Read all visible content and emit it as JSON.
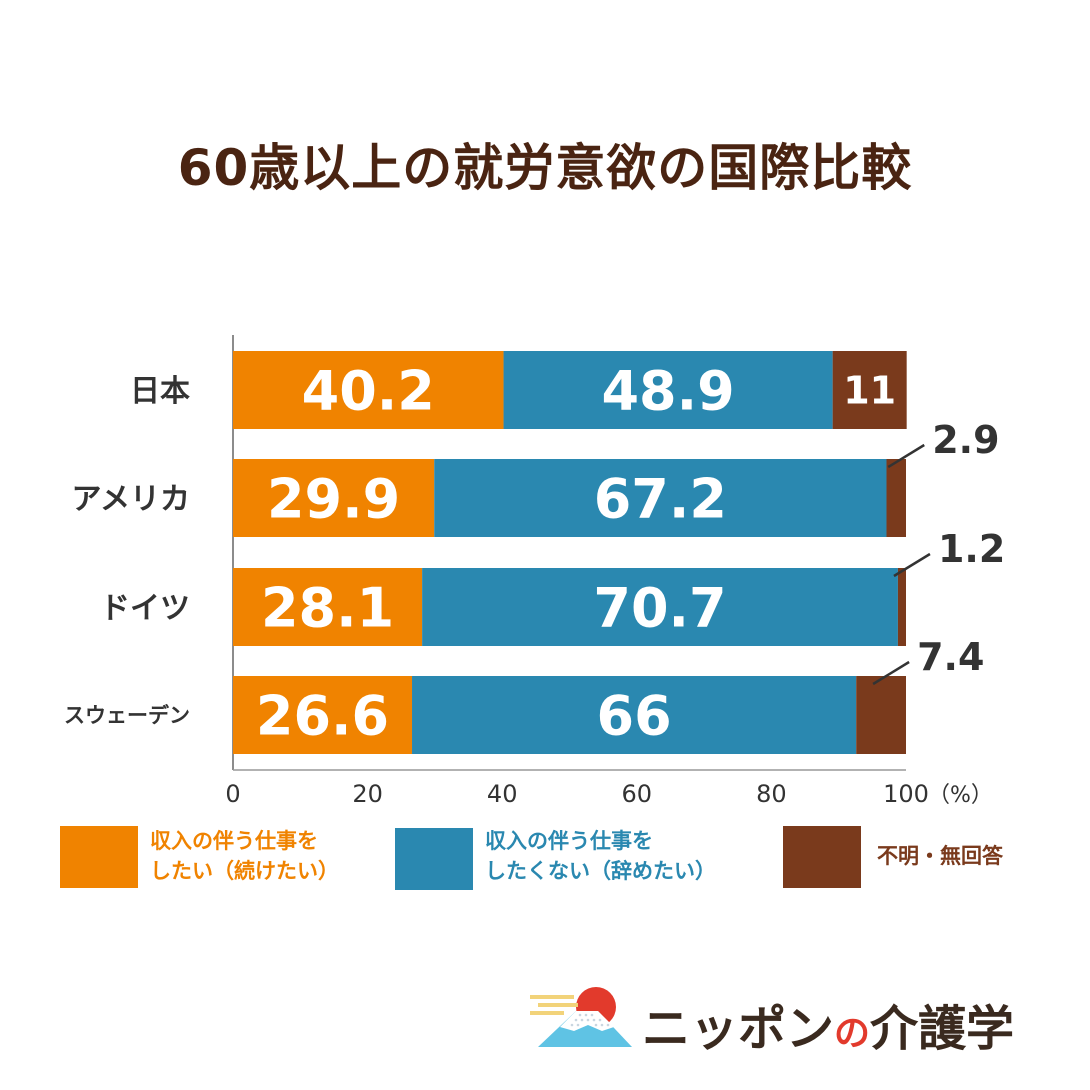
{
  "colors": {
    "title": "#4a2412",
    "continue": "#f08300",
    "quit": "#2a88b0",
    "unknown": "#7a3a1c",
    "text_dark": "#333333",
    "brand_red": "#e23a2c"
  },
  "chart_data": {
    "type": "bar",
    "orientation": "horizontal-stacked",
    "title": "60歳以上の就労意欲の国際比較",
    "categories": [
      "日本",
      "アメリカ",
      "ドイツ",
      "スウェーデン"
    ],
    "series": [
      {
        "key": "continue",
        "name": "収入の伴う仕事をしたい（続けたい）",
        "values": [
          40.2,
          29.9,
          28.1,
          26.6
        ],
        "labels": [
          "40.2",
          "29.9",
          "28.1",
          "26.6"
        ]
      },
      {
        "key": "quit",
        "name": "収入の伴う仕事をしたくない（辞めたい）",
        "values": [
          48.9,
          67.2,
          70.7,
          66
        ],
        "labels": [
          "48.9",
          "67.2",
          "70.7",
          "66"
        ]
      },
      {
        "key": "unknown",
        "name": "不明・無回答",
        "values": [
          11,
          2.9,
          1.2,
          7.4
        ],
        "labels": [
          "11",
          "2.9",
          "1.2",
          "7.4"
        ]
      }
    ],
    "xlim": [
      0,
      100
    ],
    "xticks": [
      "0",
      "20",
      "40",
      "60",
      "80",
      "100"
    ],
    "xunit": "（%）",
    "grid": false,
    "legend_position": "bottom"
  },
  "legend": {
    "continue": [
      "収入の伴う仕事を",
      "したい（続けたい）"
    ],
    "quit": [
      "収入の伴う仕事を",
      "したくない（辞めたい）"
    ],
    "unknown": [
      "不明・無回答"
    ]
  },
  "brand": {
    "name_part1": "ニッポン",
    "name_particle": "の",
    "name_part2": "介護学"
  }
}
